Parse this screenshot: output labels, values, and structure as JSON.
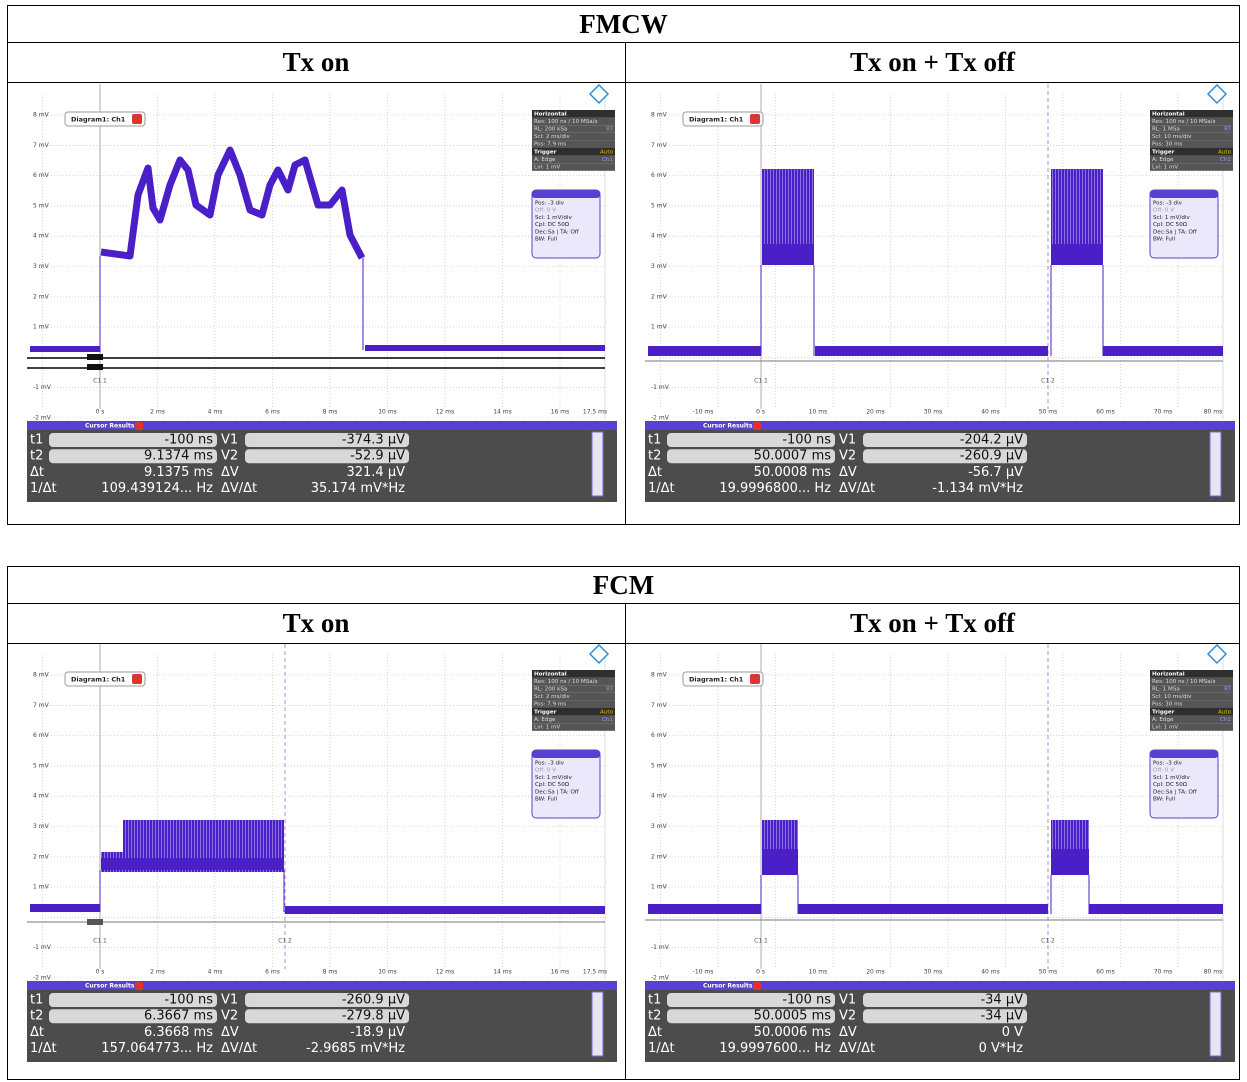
{
  "tables": [
    {
      "title": "FMCW",
      "headers": [
        "Tx on",
        "Tx on + Tx off"
      ],
      "panels": [
        {
          "diagram": "Diagram1: Ch1",
          "y_labels": [
            "8 mV",
            "7 mV",
            "6 mV",
            "5 mV",
            "4 mV",
            "3 mV",
            "2 mV",
            "1 mV",
            "-1 mV",
            "-2 mV"
          ],
          "x_labels": [
            "0 s",
            "2 ms",
            "4 ms",
            "6 ms",
            "8 ms",
            "10 ms",
            "12 ms",
            "14 ms",
            "16 ms",
            "17.5 ms"
          ],
          "cursor_labels": [
            "C1.1"
          ],
          "horizontal": [
            [
              "Horizontal"
            ],
            [
              "Res: 100 ns / 10 MSa/s"
            ],
            [
              "RL: 200 kSa",
              "RT"
            ],
            [
              "Scl: 2 ms/div"
            ],
            [
              "Pos: 7.9 ms"
            ],
            [
              "Trigger",
              "Auto"
            ],
            [
              "A: Edge",
              "Ch1"
            ],
            [
              "Lvl: 1 mV"
            ]
          ],
          "channel": [
            "Pos: -3 div",
            "Off: 0 V",
            "Scl: 1 mV/div",
            "Cpl: DC 50Ω",
            "Dec:Sa | TA: Off",
            "BW: Full"
          ],
          "cursor_results": {
            "title": "Cursor Results 1",
            "rows": [
              [
                "t1",
                "-100 ns",
                "V1",
                "-374.3 µV"
              ],
              [
                "t2",
                "9.1374 ms",
                "V2",
                "-52.9 µV"
              ],
              [
                "Δt",
                "9.1375 ms",
                "ΔV",
                "321.4 µV"
              ],
              [
                "1/Δt",
                "109.439124... Hz",
                "ΔV/Δt",
                "35.174 mV*Hz"
              ]
            ]
          }
        },
        {
          "diagram": "Diagram1: Ch1",
          "y_labels": [
            "8 mV",
            "7 mV",
            "6 mV",
            "5 mV",
            "4 mV",
            "3 mV",
            "2 mV",
            "1 mV",
            "-1 mV",
            "-2 mV"
          ],
          "x_labels": [
            "-10 ms",
            "0 s",
            "10 ms",
            "20 ms",
            "30 ms",
            "40 ms",
            "50 ms",
            "60 ms",
            "70 ms",
            "80 ms"
          ],
          "cursor_labels": [
            "C1.1",
            "C1.2"
          ],
          "horizontal": [
            [
              "Horizontal"
            ],
            [
              "Res: 100 ns / 10 MSa/s"
            ],
            [
              "RL: 1 MSa",
              "RT"
            ],
            [
              "Scl: 10 ms/div"
            ],
            [
              "Pos: 30 ms"
            ],
            [
              "Trigger",
              "Auto"
            ],
            [
              "A: Edge",
              "Ch1"
            ],
            [
              "Lvl: 1 mV"
            ]
          ],
          "channel": [
            "Pos: -3 div",
            "Off: 0 V",
            "Scl: 1 mV/div",
            "Cpl: DC 50Ω",
            "Dec:Sa | TA: Off",
            "BW: Full"
          ],
          "cursor_results": {
            "title": "Cursor Results 1",
            "rows": [
              [
                "t1",
                "-100 ns",
                "V1",
                "-204.2 µV"
              ],
              [
                "t2",
                "50.0007 ms",
                "V2",
                "-260.9 µV"
              ],
              [
                "Δt",
                "50.0008 ms",
                "ΔV",
                "-56.7 µV"
              ],
              [
                "1/Δt",
                "19.9996800... Hz",
                "ΔV/Δt",
                "-1.134 mV*Hz"
              ]
            ]
          }
        }
      ]
    },
    {
      "title": "FCM",
      "headers": [
        "Tx on",
        "Tx on + Tx off"
      ],
      "panels": [
        {
          "diagram": "Diagram1: Ch1",
          "y_labels": [
            "8 mV",
            "7 mV",
            "6 mV",
            "5 mV",
            "4 mV",
            "3 mV",
            "2 mV",
            "1 mV",
            "-1 mV",
            "-2 mV"
          ],
          "x_labels": [
            "0 s",
            "2 ms",
            "4 ms",
            "6 ms",
            "8 ms",
            "10 ms",
            "12 ms",
            "14 ms",
            "16 ms",
            "17.5 ms"
          ],
          "cursor_labels": [
            "C1.1",
            "C1.2"
          ],
          "horizontal": [
            [
              "Horizontal"
            ],
            [
              "Res: 100 ns / 10 MSa/s"
            ],
            [
              "RL: 200 kSa",
              "RT"
            ],
            [
              "Scl: 2 ms/div"
            ],
            [
              "Pos: 7.9 ms"
            ],
            [
              "Trigger",
              "Auto"
            ],
            [
              "A: Edge",
              "Ch1"
            ],
            [
              "Lvl: 1 mV"
            ]
          ],
          "channel": [
            "Pos: -3 div",
            "Off: 0 V",
            "Scl: 1 mV/div",
            "Cpl: DC 50Ω",
            "Dec:Sa | TA: Off",
            "BW: Full"
          ],
          "cursor_results": {
            "title": "Cursor Results 1",
            "rows": [
              [
                "t1",
                "-100 ns",
                "V1",
                "-260.9 µV"
              ],
              [
                "t2",
                "6.3667 ms",
                "V2",
                "-279.8 µV"
              ],
              [
                "Δt",
                "6.3668 ms",
                "ΔV",
                "-18.9 µV"
              ],
              [
                "1/Δt",
                "157.064773... Hz",
                "ΔV/Δt",
                "-2.9685 mV*Hz"
              ]
            ]
          }
        },
        {
          "diagram": "Diagram1: Ch1",
          "y_labels": [
            "8 mV",
            "7 mV",
            "6 mV",
            "5 mV",
            "4 mV",
            "3 mV",
            "2 mV",
            "1 mV",
            "-1 mV",
            "-2 mV"
          ],
          "x_labels": [
            "-10 ms",
            "0 s",
            "10 ms",
            "20 ms",
            "30 ms",
            "40 ms",
            "50 ms",
            "60 ms",
            "70 ms",
            "80 ms"
          ],
          "cursor_labels": [
            "C1.1",
            "C1.2"
          ],
          "horizontal": [
            [
              "Horizontal"
            ],
            [
              "Res: 100 ns / 10 MSa/s"
            ],
            [
              "RL: 1 MSa",
              "RT"
            ],
            [
              "Scl: 10 ms/div"
            ],
            [
              "Pos: 30 ms"
            ],
            [
              "Trigger",
              "Auto"
            ],
            [
              "A: Edge",
              "Ch1"
            ],
            [
              "Lvl: 1 mV"
            ]
          ],
          "channel": [
            "Pos: -3 div",
            "Off: 0 V",
            "Scl: 1 mV/div",
            "Cpl: DC 50Ω",
            "Dec:Sa | TA: Off",
            "BW: Full"
          ],
          "cursor_results": {
            "title": "Cursor Results 1",
            "rows": [
              [
                "t1",
                "-100 ns",
                "V1",
                "-34 µV"
              ],
              [
                "t2",
                "50.0005 ms",
                "V2",
                "-34 µV"
              ],
              [
                "Δt",
                "50.0006 ms",
                "ΔV",
                "0 V"
              ],
              [
                "1/Δt",
                "19.9997600... Hz",
                "ΔV/Δt",
                "0 V*Hz"
              ]
            ]
          }
        }
      ]
    }
  ]
}
